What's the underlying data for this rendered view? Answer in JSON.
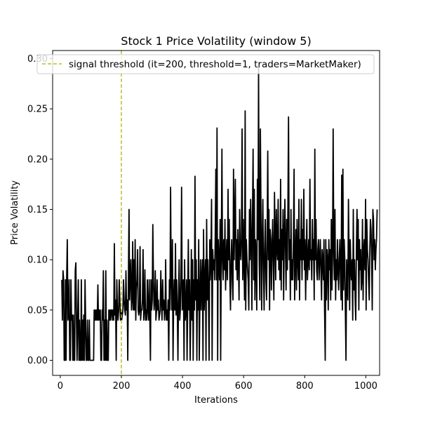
{
  "chart_data": {
    "type": "line",
    "title": "Stock 1 Price Volatility (window 5)",
    "xlabel": "Iterations",
    "ylabel": "Price Volatility",
    "xlim": [
      -25,
      1045
    ],
    "ylim": [
      -0.015,
      0.308
    ],
    "xticks": [
      0,
      200,
      400,
      600,
      800,
      1000
    ],
    "yticks": [
      0.0,
      0.05,
      0.1,
      0.15,
      0.2,
      0.25,
      0.3
    ],
    "grid": false,
    "legend_position": "top",
    "colors": {
      "series": "#000000",
      "threshold": "#bcbd22"
    },
    "threshold": {
      "x": 200,
      "label": "signal threshold (it=200, threshold=1, traders=MarketMaker)"
    },
    "series": [
      {
        "x_start": 5,
        "x_step": 2,
        "values": [
          0.08,
          0.04,
          0.089,
          0.08,
          0.0,
          0.0,
          0.08,
          0.0,
          0.08,
          0.12,
          0.04,
          0.045,
          0.08,
          0.0,
          0.0,
          0.08,
          0.04,
          0.045,
          0.0,
          0.045,
          0.0,
          0.0,
          0.089,
          0.097,
          0.04,
          0.0,
          0.04,
          0.08,
          0.0,
          0.04,
          0.0,
          0.0,
          0.08,
          0.0,
          0.04,
          0.0,
          0.045,
          0.0,
          0.08,
          0.04,
          0.0,
          0.0,
          0.04,
          0.0,
          0.0,
          0.04,
          0.0,
          0.0,
          0.0,
          0.0,
          0.0,
          0.0,
          0.0,
          0.05,
          0.04,
          0.05,
          0.04,
          0.05,
          0.04,
          0.075,
          0.04,
          0.05,
          0.04,
          0.05,
          0.0,
          0.0,
          0.05,
          0.04,
          0.089,
          0.0,
          0.04,
          0.0,
          0.089,
          0.0,
          0.04,
          0.0,
          0.0,
          0.05,
          0.04,
          0.05,
          0.04,
          0.05,
          0.05,
          0.04,
          0.05,
          0.04,
          0.116,
          0.045,
          0.06,
          0.0,
          0.08,
          0.05,
          0.04,
          0.05,
          0.08,
          0.06,
          0.04,
          0.05,
          0.04,
          0.045,
          0.05,
          0.08,
          0.06,
          0.05,
          0.045,
          0.089,
          0.05,
          0.06,
          0.0,
          0.08,
          0.15,
          0.06,
          0.08,
          0.1,
          0.05,
          0.06,
          0.118,
          0.05,
          0.1,
          0.05,
          0.12,
          0.04,
          0.07,
          0.08,
          0.11,
          0.05,
          0.045,
          0.05,
          0.113,
          0.04,
          0.05,
          0.05,
          0.06,
          0.11,
          0.04,
          0.05,
          0.09,
          0.04,
          0.05,
          0.04,
          0.08,
          0.05,
          0.04,
          0.08,
          0.045,
          0.0,
          0.08,
          0.05,
          0.06,
          0.135,
          0.08,
          0.05,
          0.06,
          0.089,
          0.04,
          0.05,
          0.08,
          0.05,
          0.06,
          0.04,
          0.045,
          0.05,
          0.089,
          0.06,
          0.04,
          0.08,
          0.05,
          0.06,
          0.04,
          0.05,
          0.1,
          0.04,
          0.05,
          0.04,
          0.06,
          0.0,
          0.08,
          0.05,
          0.172,
          0.08,
          0.05,
          0.12,
          0.0,
          0.06,
          0.08,
          0.05,
          0.116,
          0.045,
          0.08,
          0.05,
          0.0,
          0.06,
          0.1,
          0.04,
          0.05,
          0.08,
          0.172,
          0.05,
          0.06,
          0.08,
          0.0,
          0.1,
          0.04,
          0.05,
          0.08,
          0.0,
          0.06,
          0.12,
          0.05,
          0.08,
          0.0,
          0.05,
          0.11,
          0.04,
          0.1,
          0.0,
          0.08,
          0.05,
          0.183,
          0.06,
          0.1,
          0.0,
          0.08,
          0.05,
          0.12,
          0.0,
          0.06,
          0.1,
          0.05,
          0.08,
          0.1,
          0.0,
          0.13,
          0.05,
          0.08,
          0.1,
          0.0,
          0.14,
          0.06,
          0.1,
          0.07,
          0.0,
          0.12,
          0.08,
          0.1,
          0.16,
          0.0,
          0.11,
          0.09,
          0.1,
          0.08,
          0.12,
          0.19,
          0.08,
          0.231,
          0.0,
          0.12,
          0.1,
          0.08,
          0.14,
          0.0,
          0.11,
          0.21,
          0.1,
          0.08,
          0.12,
          0.09,
          0.14,
          0.07,
          0.1,
          0.12,
          0.08,
          0.17,
          0.1,
          0.14,
          0.08,
          0.05,
          0.1,
          0.12,
          0.08,
          0.06,
          0.19,
          0.1,
          0.14,
          0.18,
          0.09,
          0.12,
          0.08,
          0.13,
          0.1,
          0.06,
          0.15,
          0.11,
          0.1,
          0.12,
          0.23,
          0.08,
          0.14,
          0.1,
          0.06,
          0.248,
          0.05,
          0.12,
          0.1,
          0.09,
          0.08,
          0.05,
          0.15,
          0.1,
          0.16,
          0.12,
          0.05,
          0.14,
          0.21,
          0.08,
          0.17,
          0.06,
          0.12,
          0.1,
          0.05,
          0.18,
          0.12,
          0.291,
          0.1,
          0.06,
          0.23,
          0.14,
          0.05,
          0.12,
          0.16,
          0.09,
          0.05,
          0.11,
          0.14,
          0.08,
          0.06,
          0.12,
          0.208,
          0.1,
          0.15,
          0.05,
          0.13,
          0.12,
          0.07,
          0.11,
          0.14,
          0.1,
          0.06,
          0.167,
          0.12,
          0.08,
          0.15,
          0.11,
          0.1,
          0.16,
          0.09,
          0.12,
          0.08,
          0.18,
          0.07,
          0.13,
          0.1,
          0.15,
          0.06,
          0.12,
          0.16,
          0.11,
          0.07,
          0.14,
          0.09,
          0.15,
          0.242,
          0.1,
          0.12,
          0.06,
          0.15,
          0.08,
          0.1,
          0.08,
          0.12,
          0.19,
          0.06,
          0.1,
          0.13,
          0.07,
          0.14,
          0.1,
          0.08,
          0.16,
          0.06,
          0.12,
          0.1,
          0.16,
          0.08,
          0.13,
          0.1,
          0.17,
          0.09,
          0.12,
          0.06,
          0.11,
          0.14,
          0.08,
          0.1,
          0.12,
          0.09,
          0.18,
          0.1,
          0.11,
          0.08,
          0.14,
          0.1,
          0.12,
          0.06,
          0.21,
          0.1,
          0.14,
          0.09,
          0.08,
          0.11,
          0.12,
          0.08,
          0.1,
          0.12,
          0.09,
          0.06,
          0.11,
          0.1,
          0.08,
          0.12,
          0.05,
          0.0,
          0.12,
          0.06,
          0.11,
          0.1,
          0.05,
          0.12,
          0.09,
          0.11,
          0.06,
          0.14,
          0.07,
          0.1,
          0.23,
          0.11,
          0.08,
          0.15,
          0.06,
          0.1,
          0.08,
          0.12,
          0.09,
          0.07,
          0.1,
          0.12,
          0.08,
          0.06,
          0.184,
          0.05,
          0.19,
          0.07,
          0.12,
          0.1,
          0.05,
          0.0,
          0.1,
          0.08,
          0.06,
          0.16,
          0.11,
          0.05,
          0.12,
          0.09,
          0.08,
          0.1,
          0.04,
          0.15,
          0.07,
          0.1,
          0.06,
          0.04,
          0.11,
          0.15,
          0.1,
          0.14,
          0.05,
          0.12,
          0.09,
          0.11,
          0.07,
          0.08,
          0.14,
          0.06,
          0.11,
          0.12,
          0.09,
          0.16,
          0.05,
          0.14,
          0.11,
          0.1,
          0.08,
          0.06,
          0.11,
          0.14,
          0.13,
          0.1,
          0.05,
          0.15,
          0.14,
          0.1,
          0.12,
          0.09,
          0.11,
          0.12,
          0.15
        ]
      }
    ]
  }
}
